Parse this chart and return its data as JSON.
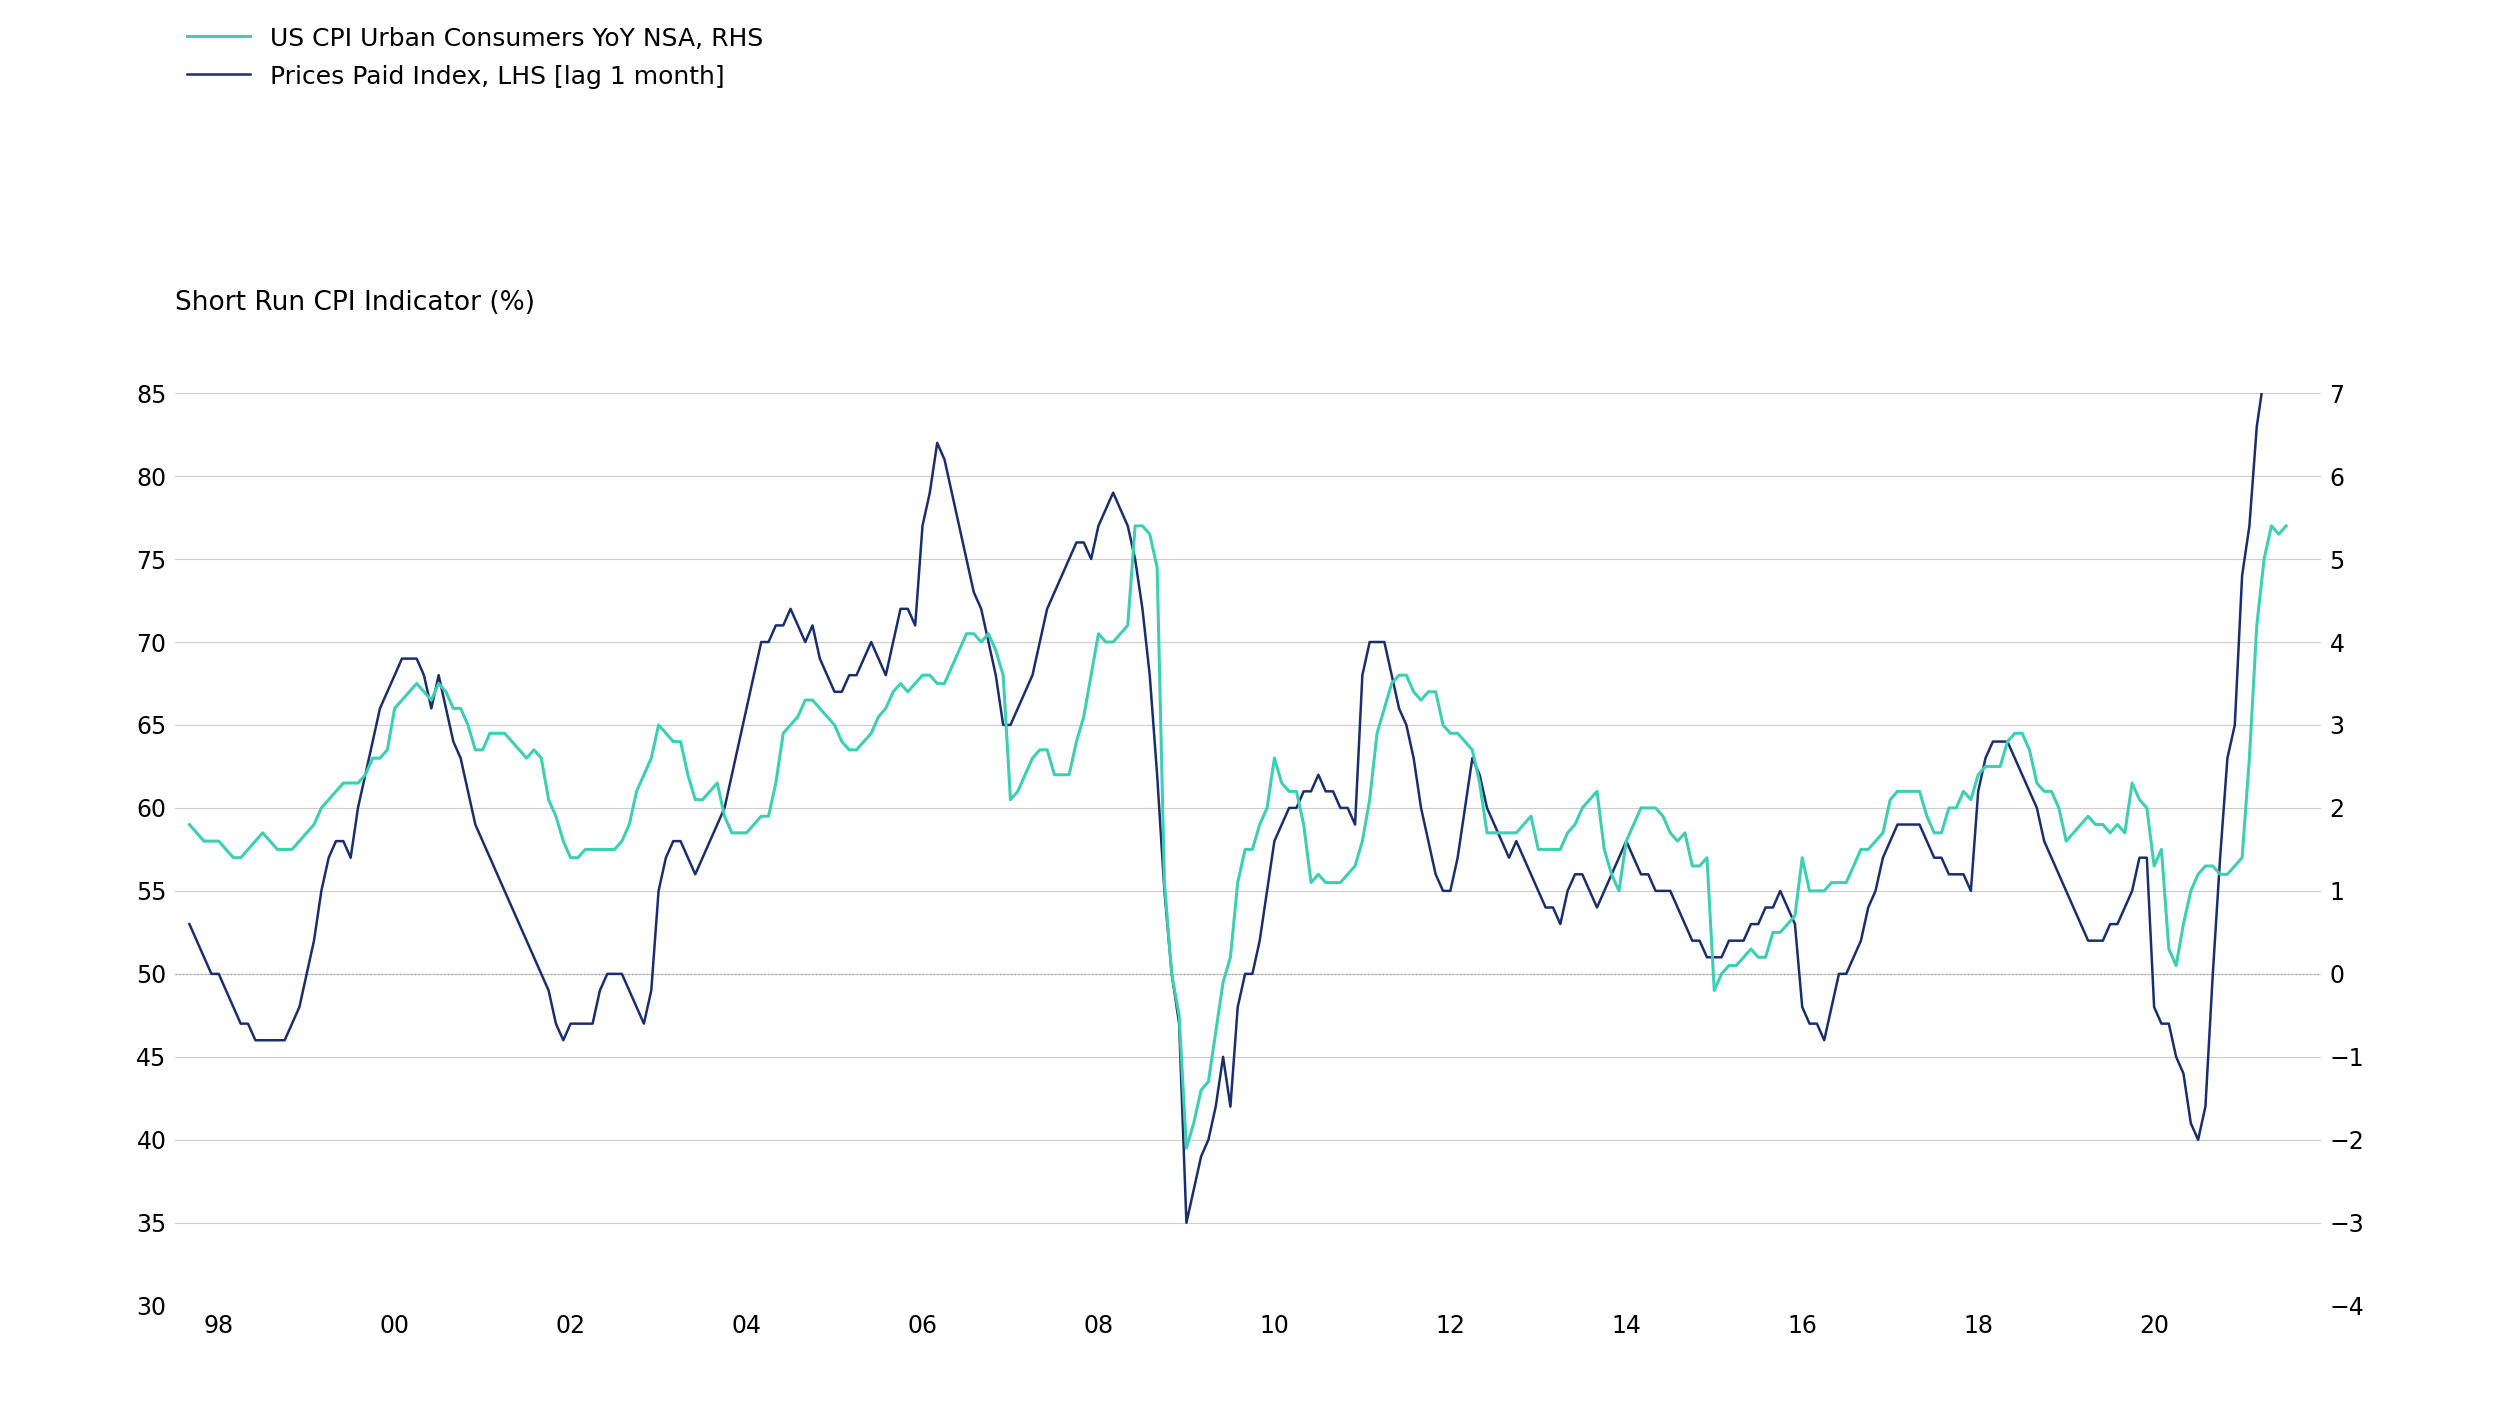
{
  "title": "Short Run CPI Indicator (%)",
  "legend": [
    {
      "label": "US CPI Urban Consumers YoY NSA, RHS",
      "color": "#3ecfb2",
      "lw": 2.2
    },
    {
      "label": "Prices Paid Index, LHS [lag 1 month]",
      "color": "#1a2e6e",
      "lw": 1.8
    }
  ],
  "lhs_ylim": [
    30,
    85
  ],
  "lhs_yticks": [
    30,
    35,
    40,
    45,
    50,
    55,
    60,
    65,
    70,
    75,
    80,
    85
  ],
  "rhs_ylim": [
    -4,
    7
  ],
  "rhs_yticks": [
    -4,
    -3,
    -2,
    -1,
    0,
    1,
    2,
    3,
    4,
    5,
    6,
    7
  ],
  "hline_y_lhs": 50,
  "background_color": "#ffffff",
  "grid_color": "#cccccc",
  "title_fontsize": 19,
  "legend_fontsize": 18,
  "tick_fontsize": 17,
  "xlim": [
    1997.5,
    2021.9
  ],
  "xticks": [
    1998,
    2000,
    2002,
    2004,
    2006,
    2008,
    2010,
    2012,
    2014,
    2016,
    2018,
    2020
  ],
  "xticklabels": [
    "98",
    "00",
    "02",
    "04",
    "06",
    "08",
    "10",
    "12",
    "14",
    "16",
    "18",
    "20"
  ],
  "prices_paid_x": [
    1997.667,
    1997.75,
    1997.833,
    1997.917,
    1998.0,
    1998.083,
    1998.167,
    1998.25,
    1998.333,
    1998.417,
    1998.5,
    1998.583,
    1998.667,
    1998.75,
    1998.833,
    1998.917,
    1999.0,
    1999.083,
    1999.167,
    1999.25,
    1999.333,
    1999.417,
    1999.5,
    1999.583,
    1999.667,
    1999.75,
    1999.833,
    1999.917,
    2000.0,
    2000.083,
    2000.167,
    2000.25,
    2000.333,
    2000.417,
    2000.5,
    2000.583,
    2000.667,
    2000.75,
    2000.833,
    2000.917,
    2001.0,
    2001.083,
    2001.167,
    2001.25,
    2001.333,
    2001.417,
    2001.5,
    2001.583,
    2001.667,
    2001.75,
    2001.833,
    2001.917,
    2002.0,
    2002.083,
    2002.167,
    2002.25,
    2002.333,
    2002.417,
    2002.5,
    2002.583,
    2002.667,
    2002.75,
    2002.833,
    2002.917,
    2003.0,
    2003.083,
    2003.167,
    2003.25,
    2003.333,
    2003.417,
    2003.5,
    2003.583,
    2003.667,
    2003.75,
    2003.833,
    2003.917,
    2004.0,
    2004.083,
    2004.167,
    2004.25,
    2004.333,
    2004.417,
    2004.5,
    2004.583,
    2004.667,
    2004.75,
    2004.833,
    2004.917,
    2005.0,
    2005.083,
    2005.167,
    2005.25,
    2005.333,
    2005.417,
    2005.5,
    2005.583,
    2005.667,
    2005.75,
    2005.833,
    2005.917,
    2006.0,
    2006.083,
    2006.167,
    2006.25,
    2006.333,
    2006.417,
    2006.5,
    2006.583,
    2006.667,
    2006.75,
    2006.833,
    2006.917,
    2007.0,
    2007.083,
    2007.167,
    2007.25,
    2007.333,
    2007.417,
    2007.5,
    2007.583,
    2007.667,
    2007.75,
    2007.833,
    2007.917,
    2008.0,
    2008.083,
    2008.167,
    2008.25,
    2008.333,
    2008.417,
    2008.5,
    2008.583,
    2008.667,
    2008.75,
    2008.833,
    2008.917,
    2009.0,
    2009.083,
    2009.167,
    2009.25,
    2009.333,
    2009.417,
    2009.5,
    2009.583,
    2009.667,
    2009.75,
    2009.833,
    2009.917,
    2010.0,
    2010.083,
    2010.167,
    2010.25,
    2010.333,
    2010.417,
    2010.5,
    2010.583,
    2010.667,
    2010.75,
    2010.833,
    2010.917,
    2011.0,
    2011.083,
    2011.167,
    2011.25,
    2011.333,
    2011.417,
    2011.5,
    2011.583,
    2011.667,
    2011.75,
    2011.833,
    2011.917,
    2012.0,
    2012.083,
    2012.167,
    2012.25,
    2012.333,
    2012.417,
    2012.5,
    2012.583,
    2012.667,
    2012.75,
    2012.833,
    2012.917,
    2013.0,
    2013.083,
    2013.167,
    2013.25,
    2013.333,
    2013.417,
    2013.5,
    2013.583,
    2013.667,
    2013.75,
    2013.833,
    2013.917,
    2014.0,
    2014.083,
    2014.167,
    2014.25,
    2014.333,
    2014.417,
    2014.5,
    2014.583,
    2014.667,
    2014.75,
    2014.833,
    2014.917,
    2015.0,
    2015.083,
    2015.167,
    2015.25,
    2015.333,
    2015.417,
    2015.5,
    2015.583,
    2015.667,
    2015.75,
    2015.833,
    2015.917,
    2016.0,
    2016.083,
    2016.167,
    2016.25,
    2016.333,
    2016.417,
    2016.5,
    2016.583,
    2016.667,
    2016.75,
    2016.833,
    2016.917,
    2017.0,
    2017.083,
    2017.167,
    2017.25,
    2017.333,
    2017.417,
    2017.5,
    2017.583,
    2017.667,
    2017.75,
    2017.833,
    2017.917,
    2018.0,
    2018.083,
    2018.167,
    2018.25,
    2018.333,
    2018.417,
    2018.5,
    2018.583,
    2018.667,
    2018.75,
    2018.833,
    2018.917,
    2019.0,
    2019.083,
    2019.167,
    2019.25,
    2019.333,
    2019.417,
    2019.5,
    2019.583,
    2019.667,
    2019.75,
    2019.833,
    2019.917,
    2020.0,
    2020.083,
    2020.167,
    2020.25,
    2020.333,
    2020.417,
    2020.5,
    2020.583,
    2020.667,
    2020.75,
    2020.833,
    2020.917,
    2021.0,
    2021.083,
    2021.167,
    2021.25,
    2021.333,
    2021.417,
    2021.5
  ],
  "prices_paid_y": [
    53,
    52,
    51,
    50,
    50,
    49,
    48,
    47,
    47,
    46,
    46,
    46,
    46,
    46,
    47,
    48,
    50,
    52,
    55,
    57,
    58,
    58,
    57,
    60,
    62,
    64,
    66,
    67,
    68,
    69,
    69,
    69,
    68,
    66,
    68,
    66,
    64,
    63,
    61,
    59,
    58,
    57,
    56,
    55,
    54,
    53,
    52,
    51,
    50,
    49,
    47,
    46,
    47,
    47,
    47,
    47,
    49,
    50,
    50,
    50,
    49,
    48,
    47,
    49,
    55,
    57,
    58,
    58,
    57,
    56,
    57,
    58,
    59,
    60,
    62,
    64,
    66,
    68,
    70,
    70,
    71,
    71,
    72,
    71,
    70,
    71,
    69,
    68,
    67,
    67,
    68,
    68,
    69,
    70,
    69,
    68,
    70,
    72,
    72,
    71,
    77,
    79,
    82,
    81,
    79,
    77,
    75,
    73,
    72,
    70,
    68,
    65,
    65,
    66,
    67,
    68,
    70,
    72,
    73,
    74,
    75,
    76,
    76,
    75,
    77,
    78,
    79,
    78,
    77,
    75,
    72,
    68,
    62,
    55,
    50,
    47,
    35,
    37,
    39,
    40,
    42,
    45,
    42,
    48,
    50,
    50,
    52,
    55,
    58,
    59,
    60,
    60,
    61,
    61,
    62,
    61,
    61,
    60,
    60,
    59,
    68,
    70,
    70,
    70,
    68,
    66,
    65,
    63,
    60,
    58,
    56,
    55,
    55,
    57,
    60,
    63,
    62,
    60,
    59,
    58,
    57,
    58,
    57,
    56,
    55,
    54,
    54,
    53,
    55,
    56,
    56,
    55,
    54,
    55,
    56,
    57,
    58,
    57,
    56,
    56,
    55,
    55,
    55,
    54,
    53,
    52,
    52,
    51,
    51,
    51,
    52,
    52,
    52,
    53,
    53,
    54,
    54,
    55,
    54,
    53,
    48,
    47,
    47,
    46,
    48,
    50,
    50,
    51,
    52,
    54,
    55,
    57,
    58,
    59,
    59,
    59,
    59,
    58,
    57,
    57,
    56,
    56,
    56,
    55,
    61,
    63,
    64,
    64,
    64,
    63,
    62,
    61,
    60,
    58,
    57,
    56,
    55,
    54,
    53,
    52,
    52,
    52,
    53,
    53,
    54,
    55,
    57,
    57,
    48,
    47,
    47,
    45,
    44,
    41,
    40,
    42,
    50,
    57,
    63,
    65,
    74,
    77,
    83,
    86,
    88,
    88,
    88
  ],
  "cpi_x": [
    1997.667,
    1997.75,
    1997.833,
    1997.917,
    1998.0,
    1998.083,
    1998.167,
    1998.25,
    1998.333,
    1998.417,
    1998.5,
    1998.583,
    1998.667,
    1998.75,
    1998.833,
    1998.917,
    1999.0,
    1999.083,
    1999.167,
    1999.25,
    1999.333,
    1999.417,
    1999.5,
    1999.583,
    1999.667,
    1999.75,
    1999.833,
    1999.917,
    2000.0,
    2000.083,
    2000.167,
    2000.25,
    2000.333,
    2000.417,
    2000.5,
    2000.583,
    2000.667,
    2000.75,
    2000.833,
    2000.917,
    2001.0,
    2001.083,
    2001.167,
    2001.25,
    2001.333,
    2001.417,
    2001.5,
    2001.583,
    2001.667,
    2001.75,
    2001.833,
    2001.917,
    2002.0,
    2002.083,
    2002.167,
    2002.25,
    2002.333,
    2002.417,
    2002.5,
    2002.583,
    2002.667,
    2002.75,
    2002.833,
    2002.917,
    2003.0,
    2003.083,
    2003.167,
    2003.25,
    2003.333,
    2003.417,
    2003.5,
    2003.583,
    2003.667,
    2003.75,
    2003.833,
    2003.917,
    2004.0,
    2004.083,
    2004.167,
    2004.25,
    2004.333,
    2004.417,
    2004.5,
    2004.583,
    2004.667,
    2004.75,
    2004.833,
    2004.917,
    2005.0,
    2005.083,
    2005.167,
    2005.25,
    2005.333,
    2005.417,
    2005.5,
    2005.583,
    2005.667,
    2005.75,
    2005.833,
    2005.917,
    2006.0,
    2006.083,
    2006.167,
    2006.25,
    2006.333,
    2006.417,
    2006.5,
    2006.583,
    2006.667,
    2006.75,
    2006.833,
    2006.917,
    2007.0,
    2007.083,
    2007.167,
    2007.25,
    2007.333,
    2007.417,
    2007.5,
    2007.583,
    2007.667,
    2007.75,
    2007.833,
    2007.917,
    2008.0,
    2008.083,
    2008.167,
    2008.25,
    2008.333,
    2008.417,
    2008.5,
    2008.583,
    2008.667,
    2008.75,
    2008.833,
    2008.917,
    2009.0,
    2009.083,
    2009.167,
    2009.25,
    2009.333,
    2009.417,
    2009.5,
    2009.583,
    2009.667,
    2009.75,
    2009.833,
    2009.917,
    2010.0,
    2010.083,
    2010.167,
    2010.25,
    2010.333,
    2010.417,
    2010.5,
    2010.583,
    2010.667,
    2010.75,
    2010.833,
    2010.917,
    2011.0,
    2011.083,
    2011.167,
    2011.25,
    2011.333,
    2011.417,
    2011.5,
    2011.583,
    2011.667,
    2011.75,
    2011.833,
    2011.917,
    2012.0,
    2012.083,
    2012.167,
    2012.25,
    2012.333,
    2012.417,
    2012.5,
    2012.583,
    2012.667,
    2012.75,
    2012.833,
    2012.917,
    2013.0,
    2013.083,
    2013.167,
    2013.25,
    2013.333,
    2013.417,
    2013.5,
    2013.583,
    2013.667,
    2013.75,
    2013.833,
    2013.917,
    2014.0,
    2014.083,
    2014.167,
    2014.25,
    2014.333,
    2014.417,
    2014.5,
    2014.583,
    2014.667,
    2014.75,
    2014.833,
    2014.917,
    2015.0,
    2015.083,
    2015.167,
    2015.25,
    2015.333,
    2015.417,
    2015.5,
    2015.583,
    2015.667,
    2015.75,
    2015.833,
    2015.917,
    2016.0,
    2016.083,
    2016.167,
    2016.25,
    2016.333,
    2016.417,
    2016.5,
    2016.583,
    2016.667,
    2016.75,
    2016.833,
    2016.917,
    2017.0,
    2017.083,
    2017.167,
    2017.25,
    2017.333,
    2017.417,
    2017.5,
    2017.583,
    2017.667,
    2017.75,
    2017.833,
    2017.917,
    2018.0,
    2018.083,
    2018.167,
    2018.25,
    2018.333,
    2018.417,
    2018.5,
    2018.583,
    2018.667,
    2018.75,
    2018.833,
    2018.917,
    2019.0,
    2019.083,
    2019.167,
    2019.25,
    2019.333,
    2019.417,
    2019.5,
    2019.583,
    2019.667,
    2019.75,
    2019.833,
    2019.917,
    2020.0,
    2020.083,
    2020.167,
    2020.25,
    2020.333,
    2020.417,
    2020.5,
    2020.583,
    2020.667,
    2020.75,
    2020.833,
    2020.917,
    2021.0,
    2021.083,
    2021.167,
    2021.25,
    2021.333,
    2021.417,
    2021.5
  ],
  "cpi_y": [
    1.8,
    1.7,
    1.6,
    1.6,
    1.6,
    1.5,
    1.4,
    1.4,
    1.5,
    1.6,
    1.7,
    1.6,
    1.5,
    1.5,
    1.5,
    1.6,
    1.7,
    1.8,
    2.0,
    2.1,
    2.2,
    2.3,
    2.3,
    2.3,
    2.4,
    2.6,
    2.6,
    2.7,
    3.2,
    3.3,
    3.4,
    3.5,
    3.4,
    3.3,
    3.5,
    3.4,
    3.2,
    3.2,
    3.0,
    2.7,
    2.7,
    2.9,
    2.9,
    2.9,
    2.8,
    2.7,
    2.6,
    2.7,
    2.6,
    2.1,
    1.9,
    1.6,
    1.4,
    1.4,
    1.5,
    1.5,
    1.5,
    1.5,
    1.5,
    1.6,
    1.8,
    2.2,
    2.4,
    2.6,
    3.0,
    2.9,
    2.8,
    2.8,
    2.4,
    2.1,
    2.1,
    2.2,
    2.3,
    1.9,
    1.7,
    1.7,
    1.7,
    1.8,
    1.9,
    1.9,
    2.3,
    2.9,
    3.0,
    3.1,
    3.3,
    3.3,
    3.2,
    3.1,
    3.0,
    2.8,
    2.7,
    2.7,
    2.8,
    2.9,
    3.1,
    3.2,
    3.4,
    3.5,
    3.4,
    3.5,
    3.6,
    3.6,
    3.5,
    3.5,
    3.7,
    3.9,
    4.1,
    4.1,
    4.0,
    4.1,
    3.9,
    3.6,
    2.1,
    2.2,
    2.4,
    2.6,
    2.7,
    2.7,
    2.4,
    2.4,
    2.4,
    2.8,
    3.1,
    3.6,
    4.1,
    4.0,
    4.0,
    4.1,
    4.2,
    5.4,
    5.4,
    5.3,
    4.9,
    1.1,
    0.0,
    -0.5,
    -2.1,
    -1.8,
    -1.4,
    -1.3,
    -0.7,
    -0.1,
    0.2,
    1.1,
    1.5,
    1.5,
    1.8,
    2.0,
    2.6,
    2.3,
    2.2,
    2.2,
    1.8,
    1.1,
    1.2,
    1.1,
    1.1,
    1.1,
    1.2,
    1.3,
    1.6,
    2.1,
    2.9,
    3.2,
    3.5,
    3.6,
    3.6,
    3.4,
    3.3,
    3.4,
    3.4,
    3.0,
    2.9,
    2.9,
    2.8,
    2.7,
    2.3,
    1.7,
    1.7,
    1.7,
    1.7,
    1.7,
    1.8,
    1.9,
    1.5,
    1.5,
    1.5,
    1.5,
    1.7,
    1.8,
    2.0,
    2.1,
    2.2,
    1.5,
    1.2,
    1.0,
    1.6,
    1.8,
    2.0,
    2.0,
    2.0,
    1.9,
    1.7,
    1.6,
    1.7,
    1.3,
    1.3,
    1.4,
    -0.2,
    0.0,
    0.1,
    0.1,
    0.2,
    0.3,
    0.2,
    0.2,
    0.5,
    0.5,
    0.6,
    0.7,
    1.4,
    1.0,
    1.0,
    1.0,
    1.1,
    1.1,
    1.1,
    1.3,
    1.5,
    1.5,
    1.6,
    1.7,
    2.1,
    2.2,
    2.2,
    2.2,
    2.2,
    1.9,
    1.7,
    1.7,
    2.0,
    2.0,
    2.2,
    2.1,
    2.4,
    2.5,
    2.5,
    2.5,
    2.8,
    2.9,
    2.9,
    2.7,
    2.3,
    2.2,
    2.2,
    2.0,
    1.6,
    1.7,
    1.8,
    1.9,
    1.8,
    1.8,
    1.7,
    1.8,
    1.7,
    2.3,
    2.1,
    2.0,
    1.3,
    1.5,
    0.3,
    0.1,
    0.6,
    1.0,
    1.2,
    1.3,
    1.3,
    1.2,
    1.2,
    1.3,
    1.4,
    2.6,
    4.2,
    5.0,
    5.4,
    5.3,
    5.4
  ]
}
